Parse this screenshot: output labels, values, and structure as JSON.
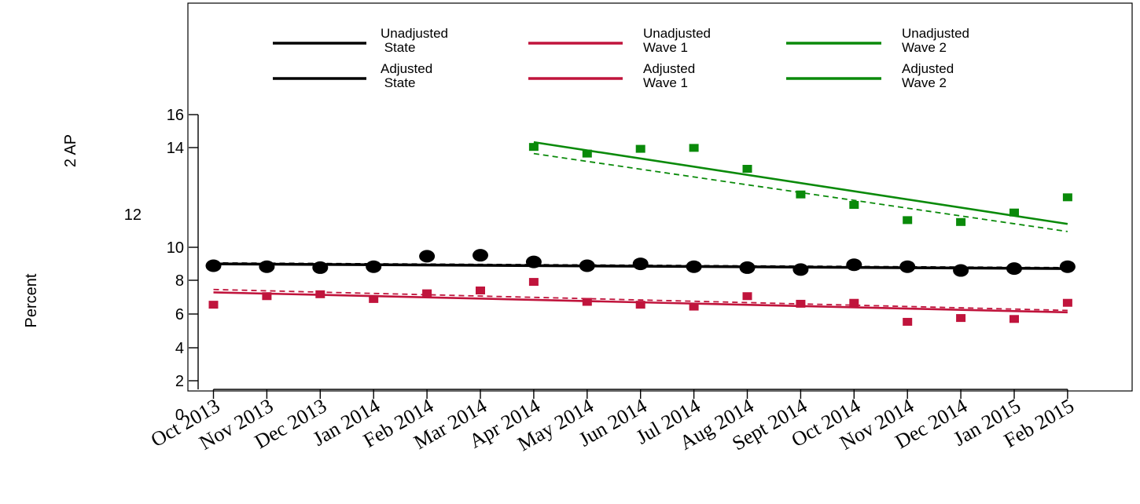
{
  "chart_data": {
    "type": "line",
    "ylabels": [
      "2 AP",
      "Percent"
    ],
    "y_ticks": [
      "0",
      "2",
      "4",
      "6",
      "8",
      "10",
      "12",
      "14",
      "16"
    ],
    "categories": [
      "Oct 2013",
      "Nov 2013",
      "Dec 2013",
      "Jan 2014",
      "Feb 2014",
      "Mar 2014",
      "Apr 2014",
      "May 2014",
      "Jun 2014",
      "Jul 2014",
      "Aug 2014",
      "Sept 2014",
      "Oct 2014",
      "Nov 2014",
      "Dec 2014",
      "Jan 2015",
      "Feb 2015"
    ],
    "ylim": [
      0,
      18
    ],
    "grid": false,
    "legend_position": "top",
    "legend": [
      {
        "label": "Unadjusted\n State",
        "color": "#000000",
        "style": "solid"
      },
      {
        "label": "Adjusted\n State",
        "color": "#000000",
        "style": "solid"
      },
      {
        "label": "Unadjusted\nWave 1",
        "color": "#c0143c",
        "style": "solid"
      },
      {
        "label": "Adjusted\nWave 1",
        "color": "#c0143c",
        "style": "solid"
      },
      {
        "label": "Unadjusted\nWave 2",
        "color": "#0a8a0a",
        "style": "solid"
      },
      {
        "label": "Adjusted\nWave 2",
        "color": "#0a8a0a",
        "style": "solid"
      }
    ],
    "series": [
      {
        "group": "state",
        "color": "#000000",
        "marker": "circle",
        "points": [
          8.05,
          8.0,
          7.95,
          8.0,
          8.55,
          8.6,
          8.25,
          8.05,
          8.15,
          8.0,
          7.95,
          7.85,
          8.1,
          8.0,
          7.8,
          7.9,
          8.0
        ],
        "fit_unadjusted": [
          8.15,
          7.9
        ],
        "fit_adjusted": [
          8.2,
          7.95
        ]
      },
      {
        "group": "wave1",
        "color": "#c0143c",
        "marker": "square",
        "points": [
          6.0,
          6.45,
          6.55,
          6.3,
          6.6,
          6.75,
          7.2,
          6.15,
          6.0,
          5.9,
          6.45,
          6.05,
          6.1,
          5.1,
          5.3,
          5.25,
          6.1
        ],
        "fit_unadjusted": [
          6.65,
          5.6
        ],
        "fit_adjusted": [
          6.8,
          5.7
        ]
      },
      {
        "group": "wave2",
        "color": "#0a8a0a",
        "marker": "square",
        "start_index": 6,
        "points": [
          14.3,
          13.95,
          14.2,
          14.25,
          13.15,
          11.8,
          11.25,
          10.45,
          10.35,
          10.85,
          11.65
        ],
        "fit_unadjusted": [
          14.55,
          10.25
        ],
        "fit_adjusted": [
          13.95,
          9.85
        ]
      }
    ]
  }
}
